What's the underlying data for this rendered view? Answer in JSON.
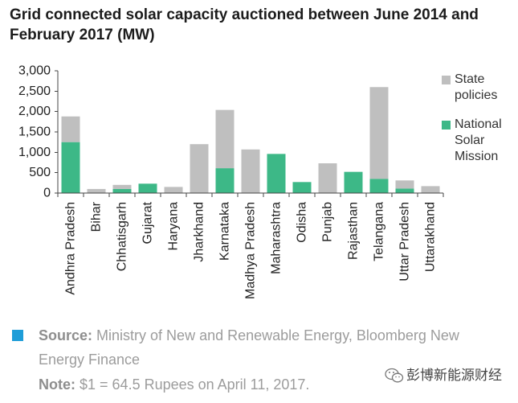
{
  "chart_data": {
    "type": "bar",
    "stacked": true,
    "title": "Grid connected solar capacity auctioned between June 2014 and February 2017 (MW)",
    "xlabel": "",
    "ylabel": "",
    "categories": [
      "Andhra Pradesh",
      "Bihar",
      "Chhatisgarh",
      "Gujarat",
      "Haryana",
      "Jharkhand",
      "Karnataka",
      "Madhya Pradesh",
      "Maharashtra",
      "Odisha",
      "Punjab",
      "Rajasthan",
      "Telangana",
      "Uttar Pradesh",
      "Uttarakhand"
    ],
    "series": [
      {
        "name": "National Solar Mission",
        "color": "#3db887",
        "values": [
          1250,
          0,
          100,
          230,
          0,
          0,
          610,
          0,
          960,
          270,
          0,
          520,
          350,
          110,
          0
        ]
      },
      {
        "name": "State policies",
        "color": "#bfbfbf",
        "values": [
          630,
          100,
          100,
          0,
          150,
          1200,
          1430,
          1070,
          0,
          0,
          730,
          0,
          2250,
          200,
          170
        ]
      }
    ],
    "ylim": [
      0,
      3000
    ],
    "yticks": [
      0,
      500,
      1000,
      1500,
      2000,
      2500,
      3000
    ],
    "ytick_labels": [
      "0",
      "500",
      "1,000",
      "1,500",
      "2,000",
      "2,500",
      "3,000"
    ],
    "grid": false,
    "legend": {
      "placement": "right"
    }
  },
  "footer": {
    "source_label": "Source:",
    "source_text": "Ministry of New and Renewable Energy, Bloomberg New Energy Finance",
    "note_label": "Note:",
    "note_text": "$1 = 64.5 Rupees on April 11, 2017.",
    "accent_color": "#1e9dd8"
  },
  "watermark": {
    "text": "彭博新能源财经",
    "icon": "wechat-icon"
  }
}
